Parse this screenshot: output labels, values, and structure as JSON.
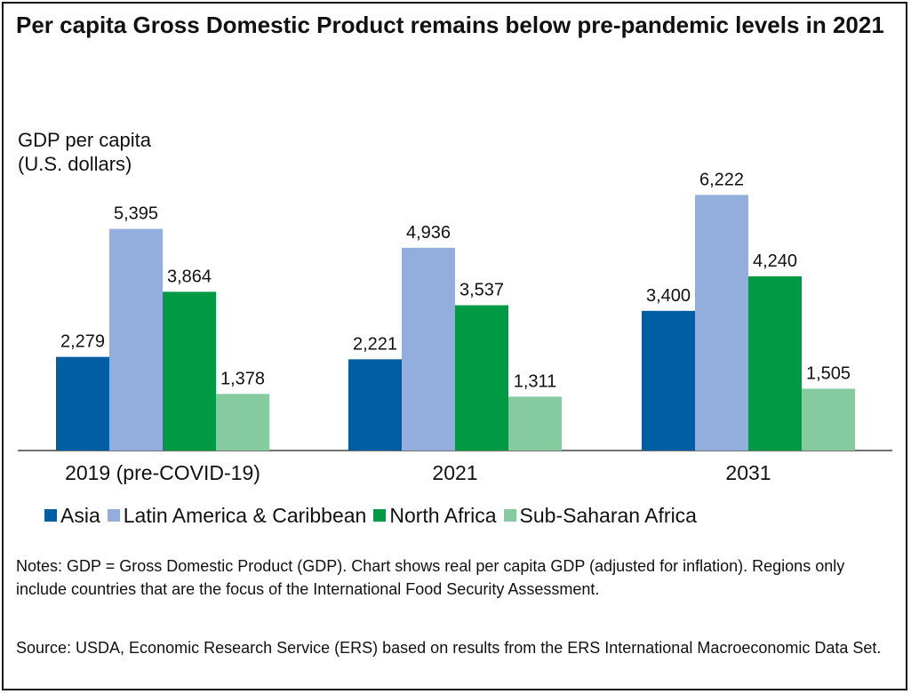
{
  "title": "Per capita Gross Domestic Product remains below pre-pandemic levels in 2021",
  "ylabel_line1": "GDP per capita",
  "ylabel_line2": "(U.S. dollars)",
  "notes": "Notes: GDP = Gross Domestic Product (GDP). Chart shows real per capita GDP (adjusted for inflation). Regions only include countries that are the focus of the International Food Security Assessment.",
  "source": "Source: USDA, Economic Research Service (ERS) based on results from the ERS International Macroeconomic Data Set.",
  "chart_data": {
    "type": "bar",
    "categories": [
      "2019 (pre-COVID-19)",
      "2021",
      "2031"
    ],
    "series": [
      {
        "name": "Asia",
        "color": "#005ea2",
        "values": [
          2279,
          2221,
          3400
        ],
        "labels": [
          "2,279",
          "2,221",
          "3,400"
        ]
      },
      {
        "name": "Latin America & Caribbean",
        "color": "#93aedc",
        "values": [
          5395,
          4936,
          6222
        ],
        "labels": [
          "5,395",
          "4,936",
          "6,222"
        ]
      },
      {
        "name": "North Africa",
        "color": "#009a44",
        "values": [
          3864,
          3537,
          4240
        ],
        "labels": [
          "3,864",
          "3,537",
          "4,240"
        ]
      },
      {
        "name": "Sub-Saharan Africa",
        "color": "#86cba0",
        "values": [
          1378,
          1311,
          1505
        ],
        "labels": [
          "1,378",
          "1,311",
          "1,505"
        ]
      }
    ],
    "ylabel": "GDP per capita (U.S. dollars)",
    "ylim": [
      0,
      7000
    ],
    "grid": false,
    "legend": "bottom"
  }
}
